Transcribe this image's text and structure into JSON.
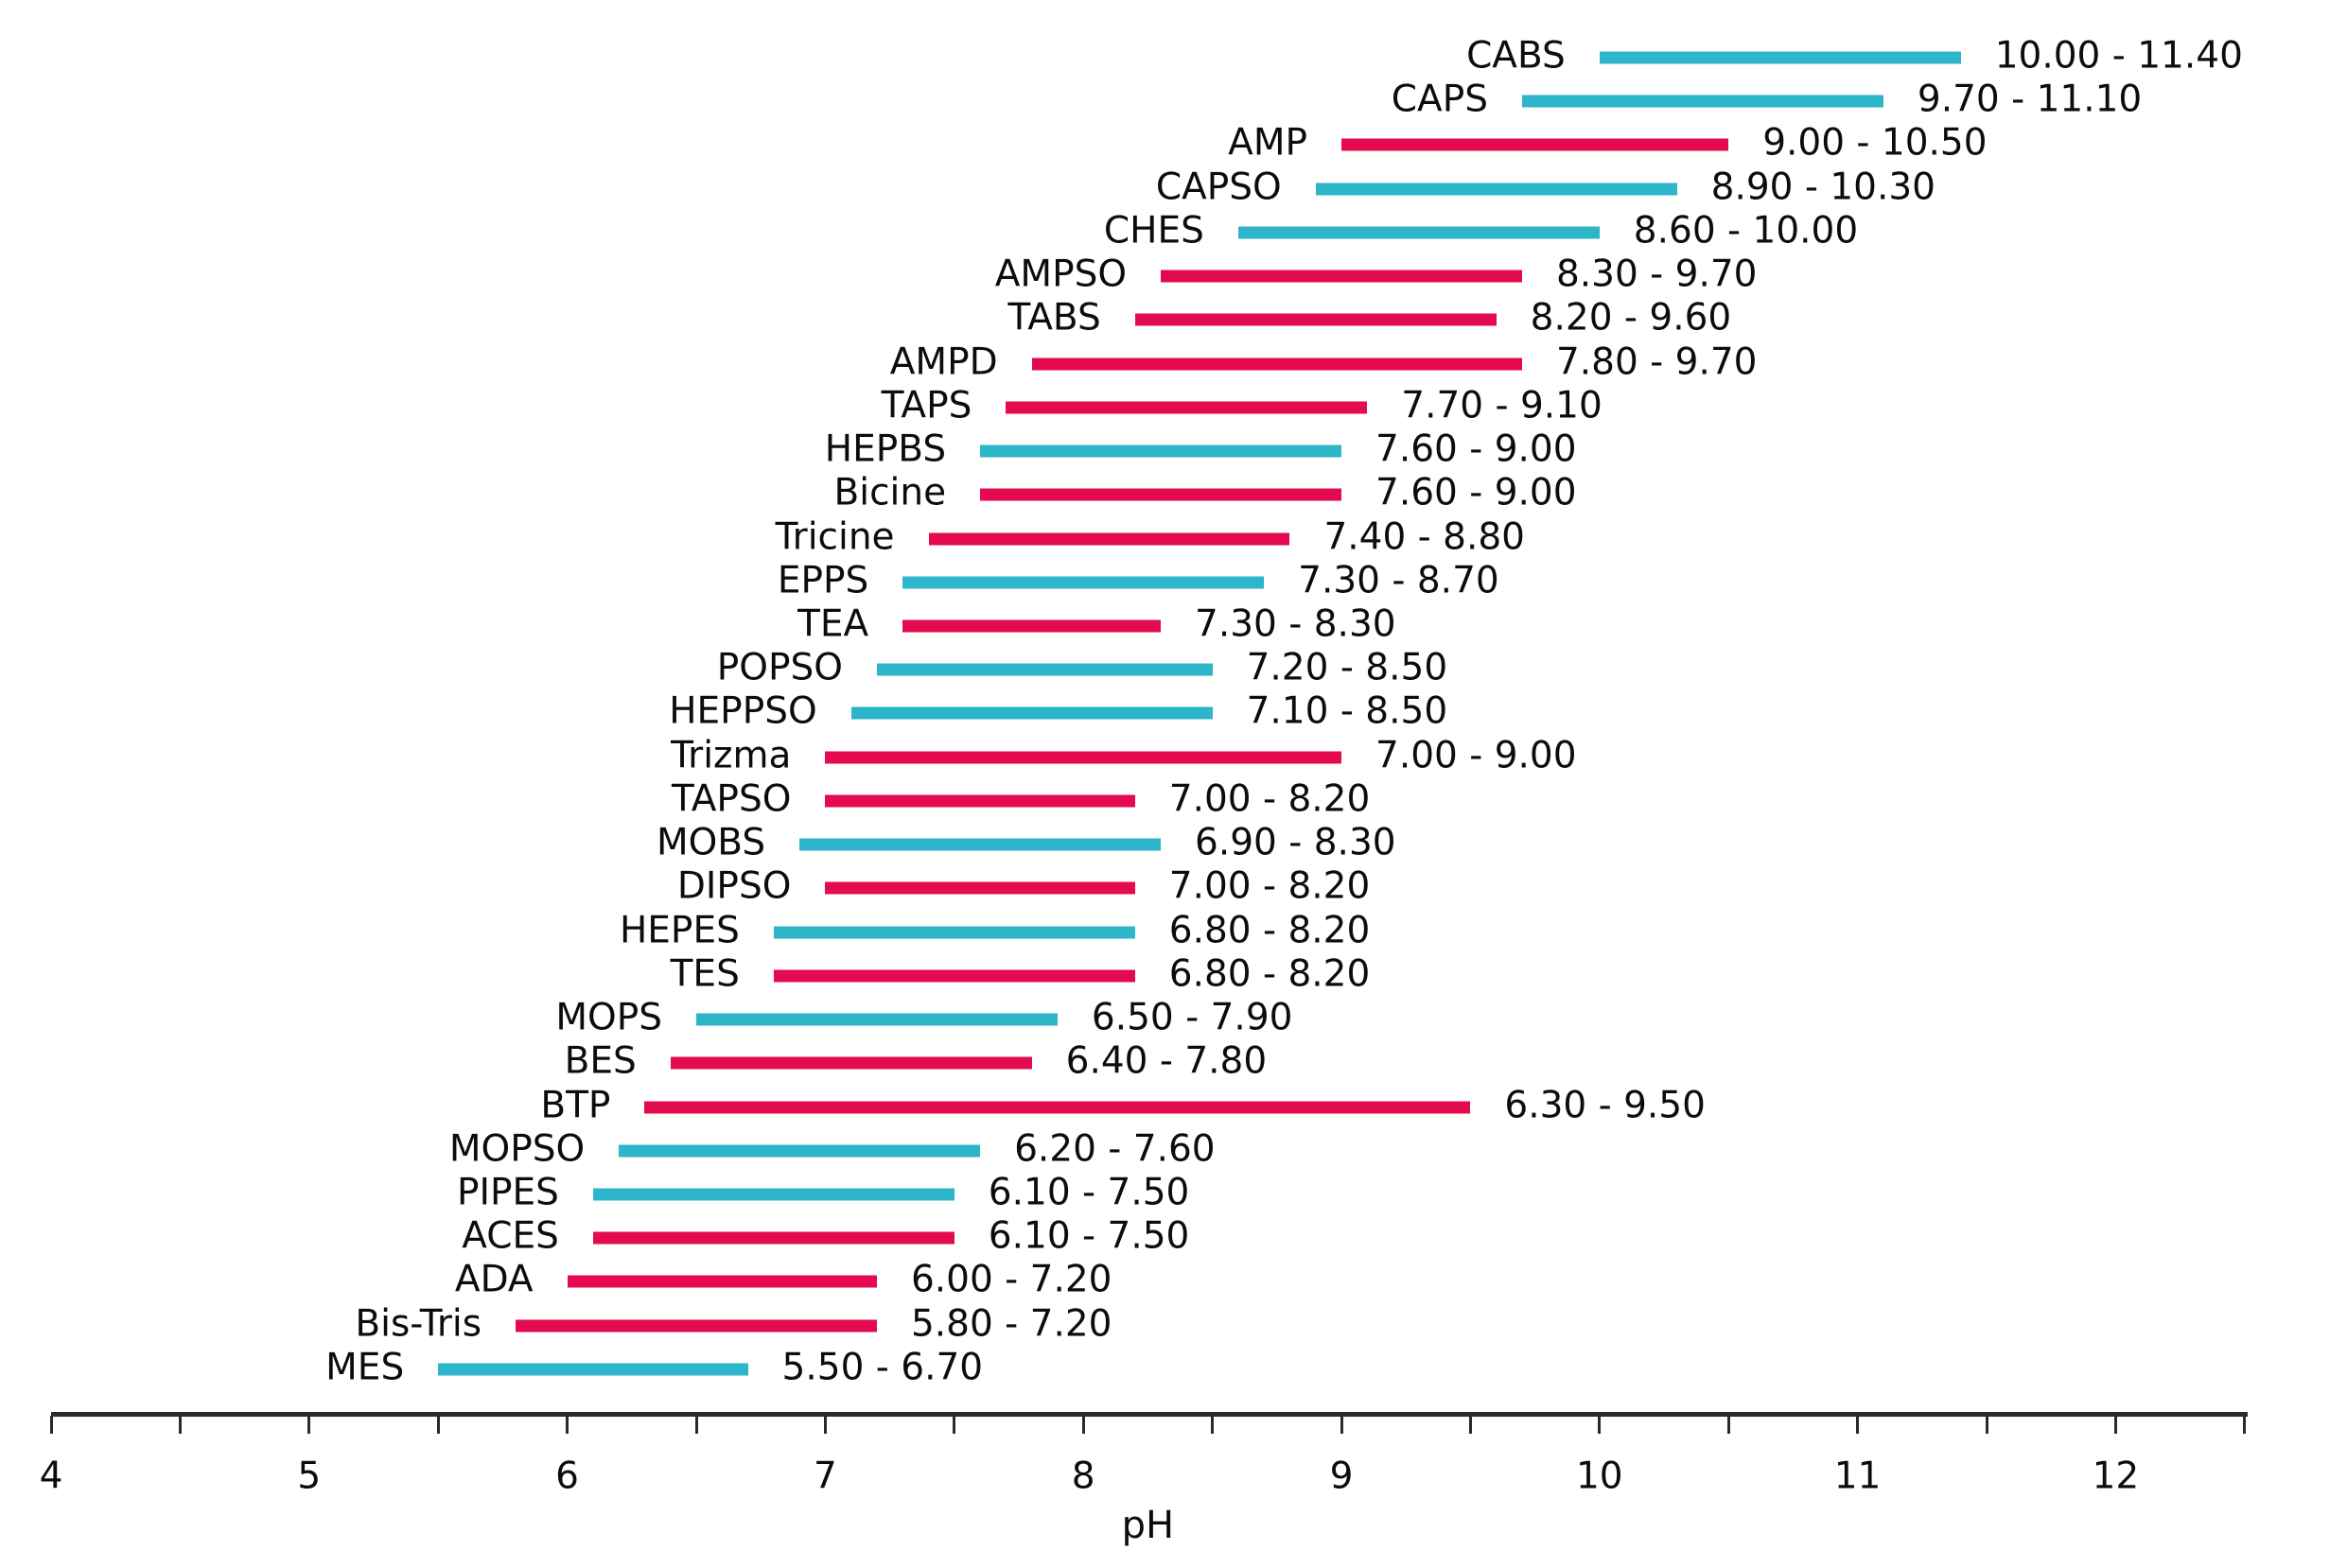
{
  "colors": {
    "cyan": "#2db5c9",
    "crimson": "#e40a4e",
    "axis": "#2a2a2a",
    "text": "#0c0c0c"
  },
  "chart_data": {
    "type": "bar",
    "subtype": "horizontal-range-bars",
    "title": "",
    "xlabel": "pH",
    "xlim": [
      4,
      12.5
    ],
    "major_tick_step": 1,
    "minor_tick_step": 0.5,
    "x_tick_labels": [
      "4",
      "5",
      "6",
      "7",
      "8",
      "9",
      "10",
      "11",
      "12"
    ],
    "grid": false,
    "legend": false,
    "buffers": [
      {
        "name": "CABS",
        "low": 10.0,
        "high": 11.4,
        "range_label": "10.00 - 11.40",
        "color": "cyan"
      },
      {
        "name": "CAPS",
        "low": 9.7,
        "high": 11.1,
        "range_label": "9.70 - 11.10",
        "color": "cyan"
      },
      {
        "name": "AMP",
        "low": 9.0,
        "high": 10.5,
        "range_label": "9.00 - 10.50",
        "color": "crimson"
      },
      {
        "name": "CAPSO",
        "low": 8.9,
        "high": 10.3,
        "range_label": "8.90 - 10.30",
        "color": "cyan"
      },
      {
        "name": "CHES",
        "low": 8.6,
        "high": 10.0,
        "range_label": "8.60 - 10.00",
        "color": "cyan"
      },
      {
        "name": "AMPSO",
        "low": 8.3,
        "high": 9.7,
        "range_label": "8.30 - 9.70",
        "color": "crimson"
      },
      {
        "name": "TABS",
        "low": 8.2,
        "high": 9.6,
        "range_label": "8.20 - 9.60",
        "color": "crimson"
      },
      {
        "name": "AMPD",
        "low": 7.8,
        "high": 9.7,
        "range_label": "7.80 - 9.70",
        "color": "crimson"
      },
      {
        "name": "TAPS",
        "low": 7.7,
        "high": 9.1,
        "range_label": "7.70 - 9.10",
        "color": "crimson"
      },
      {
        "name": "HEPBS",
        "low": 7.6,
        "high": 9.0,
        "range_label": "7.60 - 9.00",
        "color": "cyan"
      },
      {
        "name": "Bicine",
        "low": 7.6,
        "high": 9.0,
        "range_label": "7.60 - 9.00",
        "color": "crimson"
      },
      {
        "name": "Tricine",
        "low": 7.4,
        "high": 8.8,
        "range_label": "7.40 - 8.80",
        "color": "crimson"
      },
      {
        "name": "EPPS",
        "low": 7.3,
        "high": 8.7,
        "range_label": "7.30 - 8.70",
        "color": "cyan"
      },
      {
        "name": "TEA",
        "low": 7.3,
        "high": 8.3,
        "range_label": "7.30 - 8.30",
        "color": "crimson"
      },
      {
        "name": "POPSO",
        "low": 7.2,
        "high": 8.5,
        "range_label": "7.20 - 8.50",
        "color": "cyan"
      },
      {
        "name": "HEPPSO",
        "low": 7.1,
        "high": 8.5,
        "range_label": "7.10 - 8.50",
        "color": "cyan"
      },
      {
        "name": "Trizma",
        "low": 7.0,
        "high": 9.0,
        "range_label": "7.00 - 9.00",
        "color": "crimson"
      },
      {
        "name": "TAPSO",
        "low": 7.0,
        "high": 8.2,
        "range_label": "7.00 - 8.20",
        "color": "crimson"
      },
      {
        "name": "MOBS",
        "low": 6.9,
        "high": 8.3,
        "range_label": "6.90 - 8.30",
        "color": "cyan"
      },
      {
        "name": "DIPSO",
        "low": 7.0,
        "high": 8.2,
        "range_label": "7.00 - 8.20",
        "color": "crimson"
      },
      {
        "name": "HEPES",
        "low": 6.8,
        "high": 8.2,
        "range_label": "6.80 - 8.20",
        "color": "cyan"
      },
      {
        "name": "TES",
        "low": 6.8,
        "high": 8.2,
        "range_label": "6.80 - 8.20",
        "color": "crimson"
      },
      {
        "name": "MOPS",
        "low": 6.5,
        "high": 7.9,
        "range_label": "6.50 - 7.90",
        "color": "cyan"
      },
      {
        "name": "BES",
        "low": 6.4,
        "high": 7.8,
        "range_label": "6.40 - 7.80",
        "color": "crimson"
      },
      {
        "name": "BTP",
        "low": 6.3,
        "high": 9.5,
        "range_label": "6.30 - 9.50",
        "color": "crimson"
      },
      {
        "name": "MOPSO",
        "low": 6.2,
        "high": 7.6,
        "range_label": "6.20 - 7.60",
        "color": "cyan"
      },
      {
        "name": "PIPES",
        "low": 6.1,
        "high": 7.5,
        "range_label": "6.10 - 7.50",
        "color": "cyan"
      },
      {
        "name": "ACES",
        "low": 6.1,
        "high": 7.5,
        "range_label": "6.10 - 7.50",
        "color": "crimson"
      },
      {
        "name": "ADA",
        "low": 6.0,
        "high": 7.2,
        "range_label": "6.00 - 7.20",
        "color": "crimson"
      },
      {
        "name": "Bis-Tris",
        "low": 5.8,
        "high": 7.2,
        "range_label": "5.80 - 7.20",
        "color": "crimson"
      },
      {
        "name": "MES",
        "low": 5.5,
        "high": 6.7,
        "range_label": "5.50 - 6.70",
        "color": "cyan"
      }
    ]
  }
}
